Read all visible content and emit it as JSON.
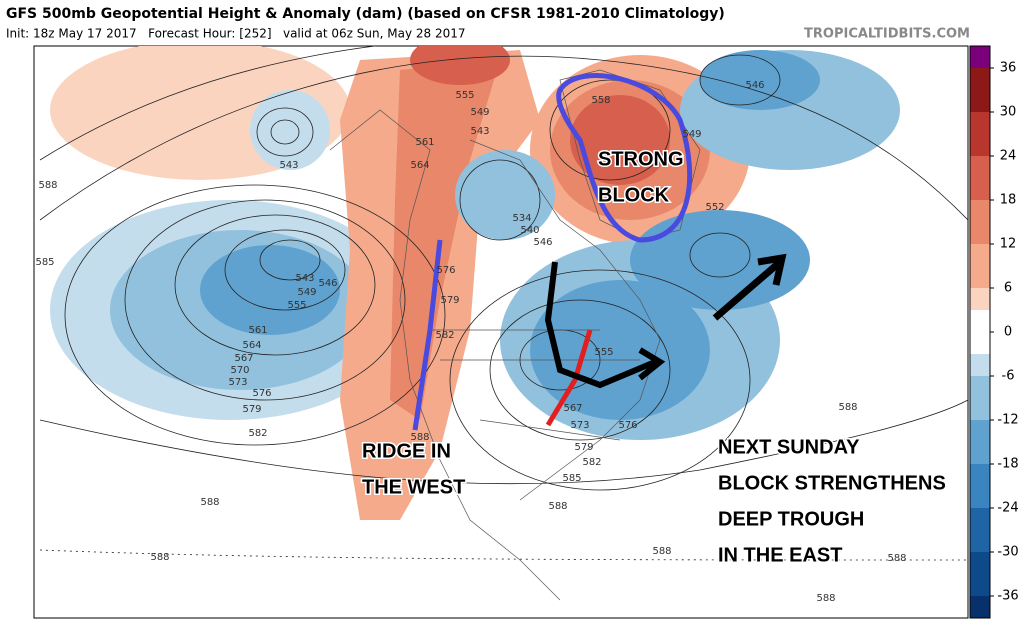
{
  "header": {
    "title": "GFS 500mb Geopotential Height & Anomaly (dam) (based on CFSR 1981-2010 Climatology)",
    "subtitle": "Init: 18z May 17 2017   Forecast Hour: [252]   valid at 06z Sun, May 28 2017",
    "site": "TROPICALTIDBITS.COM"
  },
  "annotations": [
    "STRONG",
    "BLOCK",
    "RIDGE IN",
    "THE WEST",
    "NEXT SUNDAY",
    "BLOCK STRENGTHENS",
    "DEEP TROUGH",
    "IN THE EAST"
  ],
  "contour_labels": [
    "588",
    "585",
    "543",
    "543",
    "549",
    "546",
    "555",
    "561",
    "564",
    "567",
    "570",
    "573",
    "576",
    "579",
    "582",
    "588",
    "588",
    "561",
    "564",
    "555",
    "549",
    "543",
    "558",
    "549",
    "552",
    "546",
    "534",
    "540",
    "546",
    "576",
    "579",
    "582",
    "588",
    "555",
    "567",
    "573",
    "576",
    "579",
    "582",
    "585",
    "588",
    "588",
    "588",
    "588",
    "588"
  ],
  "colorbar": {
    "levels": [
      -39,
      -36,
      -30,
      -24,
      -18,
      -12,
      -6,
      -3,
      3,
      6,
      12,
      18,
      24,
      30,
      36,
      39
    ],
    "colors": [
      "#08306b",
      "#0e4a8a",
      "#1f65a6",
      "#3a84bf",
      "#5fa2cf",
      "#92c1de",
      "#c3ddec",
      "#ffffff",
      "#fbd4c0",
      "#f5aa8c",
      "#e9876a",
      "#d6604d",
      "#b8362e",
      "#8c1818",
      "#7b007b"
    ],
    "ticks": [
      36,
      30,
      24,
      18,
      12,
      6,
      0,
      -6,
      -12,
      -18,
      -24,
      -30,
      -36
    ]
  }
}
